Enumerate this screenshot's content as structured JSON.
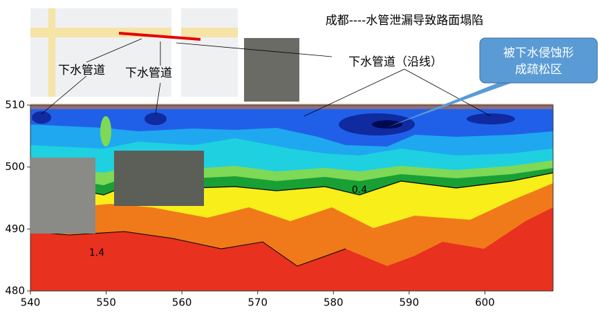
{
  "chart_data": {
    "type": "contour",
    "title": "成都----水管泄漏导致路面塌陷",
    "xlim": [
      540,
      609
    ],
    "ylim": [
      480,
      510
    ],
    "xticks": [
      540,
      550,
      560,
      570,
      580,
      590,
      600
    ],
    "yticks": [
      480,
      490,
      500,
      510
    ],
    "contour_labels": [
      0.4,
      1.4
    ],
    "annotations": [
      "下水管道",
      "下水管道",
      "下水管道（沿线）"
    ],
    "callout": [
      "被下水侵蚀形",
      "成疏松区"
    ]
  }
}
